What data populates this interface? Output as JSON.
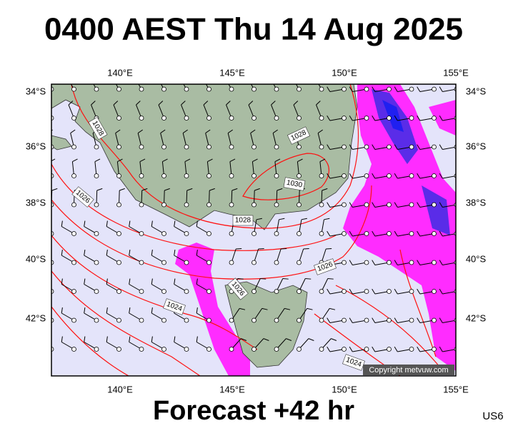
{
  "title": "0400 AEST Thu 14 Aug 2025",
  "map": {
    "lon_labels": [
      "140°E",
      "145°E",
      "150°E",
      "155°E"
    ],
    "lat_labels": [
      "34°S",
      "36°S",
      "38°S",
      "40°S",
      "42°S"
    ],
    "isobar_labels": [
      "1028",
      "1028",
      "1030",
      "1028",
      "1026",
      "1026",
      "1026",
      "1024",
      "1024"
    ]
  },
  "copyright": "Copyright metvuw.com",
  "footer": "Forecast +42 hr",
  "code": "US6"
}
